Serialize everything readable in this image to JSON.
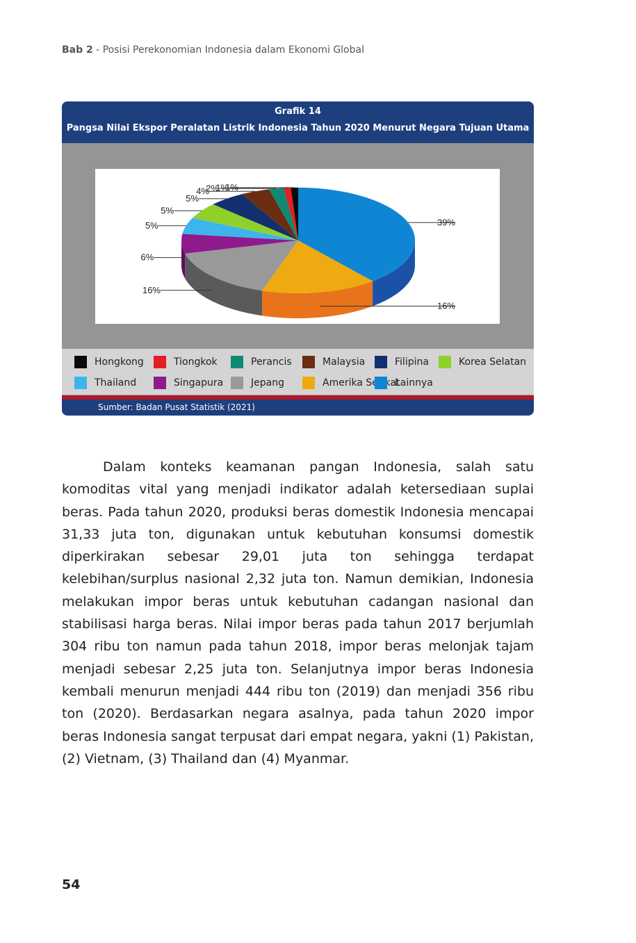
{
  "header": {
    "chapter": "Bab 2",
    "separator": " - ",
    "title": "Posisi Perekonomian Indonesia dalam Ekonomi Global"
  },
  "figure": {
    "number": "Grafik 14",
    "title": "Pangsa Nilai Ekspor Peralatan Listrik Indonesia Tahun 2020 Menurut Negara Tujuan Utama",
    "source": "Sumber: Badan Pusat Statistik (2021)"
  },
  "chart_data": {
    "type": "pie",
    "style": "3d",
    "title": "Pangsa Nilai Ekspor Peralatan Listrik Indonesia Tahun 2020 Menurut Negara Tujuan Utama",
    "unit": "%",
    "legend_position": "bottom",
    "slices": [
      {
        "name": "Lainnya",
        "value": 39,
        "label": "39%",
        "color": "#0e86d4",
        "side": "#1a52a8"
      },
      {
        "name": "Amerika Serikat",
        "value": 16,
        "label": "16%",
        "color": "#eeaa10",
        "side": "#e9731a"
      },
      {
        "name": "Jepang",
        "value": 16,
        "label": "16%",
        "color": "#999999",
        "side": "#5a5a5a"
      },
      {
        "name": "Singapura",
        "value": 6,
        "label": "6%",
        "color": "#8e1a8e",
        "side": "#5e0f5e"
      },
      {
        "name": "Thailand",
        "value": 5,
        "label": "5%",
        "color": "#3bb5ec",
        "side": "#2485b3"
      },
      {
        "name": "Korea Selatan",
        "value": 5,
        "label": "5%",
        "color": "#8fd12a",
        "side": "#5f8f18"
      },
      {
        "name": "Filipina",
        "value": 5,
        "label": "5%",
        "color": "#13306e",
        "side": "#0a1c44"
      },
      {
        "name": "Malaysia",
        "value": 4,
        "label": "4%",
        "color": "#6b2c12",
        "side": "#43190a"
      },
      {
        "name": "Perancis",
        "value": 2,
        "label": "2%",
        "color": "#0e8a74",
        "side": "#075a4b"
      },
      {
        "name": "Tiongkok",
        "value": 1,
        "label": "1%",
        "color": "#e31e24",
        "side": "#9b1418"
      },
      {
        "name": "Hongkong",
        "value": 1,
        "label": "1%",
        "color": "#0a0a0a",
        "side": "#000000"
      }
    ],
    "legend_order": [
      "Hongkong",
      "Tiongkok",
      "Perancis",
      "Malaysia",
      "Filipina",
      "Korea Selatan",
      "Thailand",
      "Singapura",
      "Jepang",
      "Amerika Serikat",
      "Lainnya"
    ]
  },
  "body": {
    "paragraph": "Dalam konteks keamanan pangan Indonesia, salah satu komoditas vital yang menjadi indikator adalah ketersediaan suplai beras. Pada tahun 2020, produksi beras domestik Indonesia mencapai 31,33 juta ton, digunakan untuk kebutuhan konsumsi domestik diperkirakan sebesar 29,01 juta ton sehingga terdapat kelebihan/surplus nasional 2,32 juta ton. Namun demikian, Indonesia melakukan impor beras untuk kebutuhan cadangan nasional dan stabilisasi harga beras. Nilai impor beras pada tahun 2017 berjumlah 304 ribu ton namun pada tahun 2018, impor beras melonjak tajam menjadi sebesar 2,25 juta ton. Selanjutnya impor beras Indonesia kembali menurun menjadi 444 ribu ton (2019) dan menjadi 356 ribu ton (2020). Berdasarkan negara asalnya, pada tahun 2020 impor beras Indonesia sangat terpusat dari empat negara, yakni (1) Pakistan, (2) Vietnam, (3) Thailand dan (4) Myanmar."
  },
  "page_number": "54"
}
